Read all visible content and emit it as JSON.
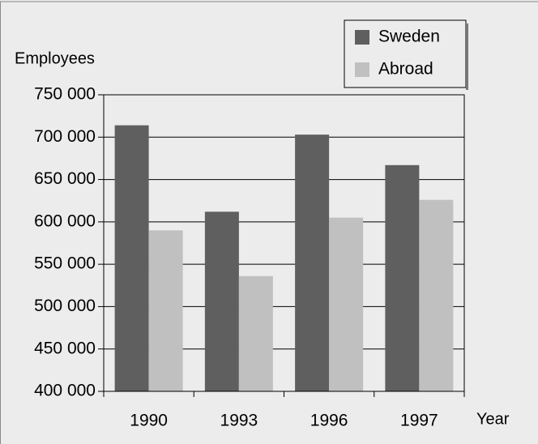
{
  "chart_data": {
    "type": "bar",
    "y_label": "Employees",
    "x_label": "Year",
    "categories": [
      "1990",
      "1993",
      "1996",
      "1997"
    ],
    "series": [
      {
        "name": "Sweden",
        "color": "#5f5f5f",
        "values": [
          714000,
          612000,
          703000,
          667000
        ]
      },
      {
        "name": "Abroad",
        "color": "#c0c0c0",
        "values": [
          590000,
          536000,
          605000,
          626000
        ]
      }
    ],
    "ylim": [
      400000,
      750000
    ],
    "yticks": [
      {
        "value": 400000,
        "label": "400 000"
      },
      {
        "value": 450000,
        "label": "450 000"
      },
      {
        "value": 500000,
        "label": "500 000"
      },
      {
        "value": 550000,
        "label": "550 000"
      },
      {
        "value": 600000,
        "label": "600 000"
      },
      {
        "value": 650000,
        "label": "650 000"
      },
      {
        "value": 700000,
        "label": "700 000"
      },
      {
        "value": 750000,
        "label": "750 000"
      }
    ],
    "grid": true,
    "legend": "top-right"
  }
}
